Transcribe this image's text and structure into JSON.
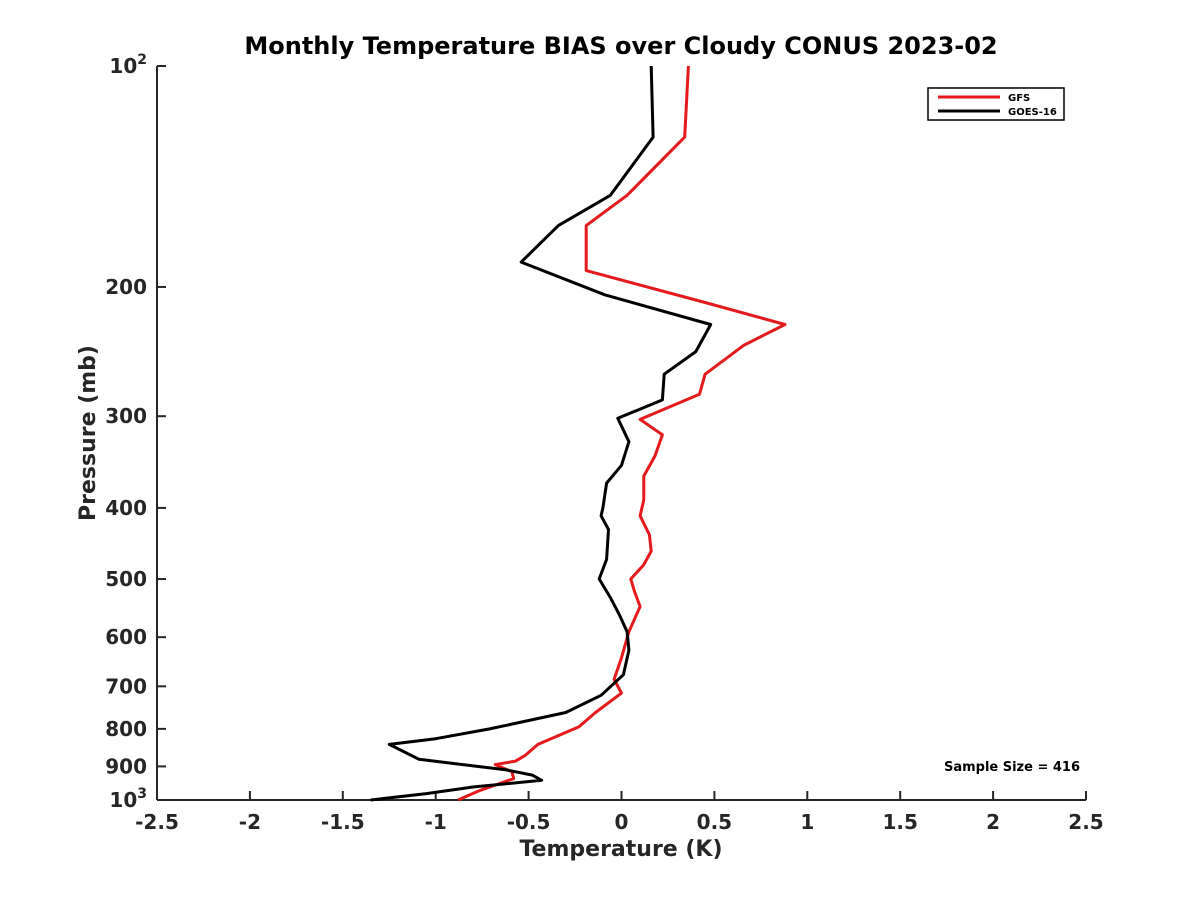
{
  "chart_data": {
    "type": "line",
    "title": "Monthly Temperature BIAS over Cloudy CONUS  2023-02",
    "xlabel": "Temperature (K)",
    "ylabel": "Pressure (mb)",
    "xlim": [
      -2.5,
      2.5
    ],
    "ylim": [
      100,
      1000
    ],
    "yscale": "log",
    "y_reversed": true,
    "x_ticks": [
      "-2.5",
      "-2",
      "-1.5",
      "-1",
      "-0.5",
      "0",
      "0.5",
      "1",
      "1.5",
      "2",
      "2.5"
    ],
    "x_tick_values": [
      -2.5,
      -2,
      -1.5,
      -1,
      -0.5,
      0,
      0.5,
      1,
      1.5,
      2,
      2.5
    ],
    "y_ticks": [
      {
        "value": 100,
        "base": "10",
        "exp": "2"
      },
      {
        "value": 200,
        "label": "200"
      },
      {
        "value": 300,
        "label": "300"
      },
      {
        "value": 400,
        "label": "400"
      },
      {
        "value": 500,
        "label": "500"
      },
      {
        "value": 600,
        "label": "600"
      },
      {
        "value": 700,
        "label": "700"
      },
      {
        "value": 800,
        "label": "800"
      },
      {
        "value": 900,
        "label": "900"
      },
      {
        "value": 1000,
        "base": "10",
        "exp": "3"
      }
    ],
    "grid": false,
    "legend_position": "top-right",
    "annotation": "Sample Size = 416",
    "series": [
      {
        "name": "GFS",
        "color": "#e41a1c",
        "points": [
          [
            0.36,
            100
          ],
          [
            0.34,
            125
          ],
          [
            0.03,
            150
          ],
          [
            -0.19,
            165
          ],
          [
            -0.19,
            190
          ],
          [
            0.45,
            210
          ],
          [
            0.88,
            225
          ],
          [
            0.66,
            240
          ],
          [
            0.45,
            263
          ],
          [
            0.42,
            280
          ],
          [
            0.1,
            303
          ],
          [
            0.22,
            318
          ],
          [
            0.18,
            340
          ],
          [
            0.12,
            362
          ],
          [
            0.12,
            390
          ],
          [
            0.1,
            410
          ],
          [
            0.15,
            435
          ],
          [
            0.16,
            458
          ],
          [
            0.12,
            478
          ],
          [
            0.05,
            500
          ],
          [
            0.07,
            520
          ],
          [
            0.1,
            545
          ],
          [
            0.04,
            590
          ],
          [
            0.0,
            640
          ],
          [
            -0.04,
            685
          ],
          [
            0.0,
            715
          ],
          [
            -0.14,
            760
          ],
          [
            -0.23,
            795
          ],
          [
            -0.45,
            840
          ],
          [
            -0.52,
            870
          ],
          [
            -0.57,
            885
          ],
          [
            -0.68,
            895
          ],
          [
            -0.59,
            915
          ],
          [
            -0.58,
            935
          ],
          [
            -0.76,
            970
          ],
          [
            -0.88,
            1000
          ]
        ]
      },
      {
        "name": "GOES-16",
        "color": "#000000",
        "points": [
          [
            0.16,
            100
          ],
          [
            0.17,
            125
          ],
          [
            -0.06,
            150
          ],
          [
            -0.34,
            165
          ],
          [
            -0.54,
            185
          ],
          [
            -0.09,
            205
          ],
          [
            0.48,
            225
          ],
          [
            0.4,
            245
          ],
          [
            0.23,
            263
          ],
          [
            0.22,
            285
          ],
          [
            -0.02,
            302
          ],
          [
            0.04,
            325
          ],
          [
            0.0,
            350
          ],
          [
            -0.08,
            370
          ],
          [
            -0.1,
            400
          ],
          [
            -0.11,
            410
          ],
          [
            -0.07,
            428
          ],
          [
            -0.08,
            470
          ],
          [
            -0.12,
            500
          ],
          [
            -0.06,
            530
          ],
          [
            -0.01,
            560
          ],
          [
            0.03,
            590
          ],
          [
            0.04,
            625
          ],
          [
            0.01,
            675
          ],
          [
            -0.11,
            720
          ],
          [
            -0.3,
            760
          ],
          [
            -0.71,
            800
          ],
          [
            -1.0,
            825
          ],
          [
            -1.25,
            840
          ],
          [
            -1.09,
            880
          ],
          [
            -0.62,
            910
          ],
          [
            -0.48,
            925
          ],
          [
            -0.43,
            940
          ],
          [
            -0.8,
            960
          ],
          [
            -1.05,
            980
          ],
          [
            -1.35,
            1000
          ]
        ]
      }
    ]
  }
}
